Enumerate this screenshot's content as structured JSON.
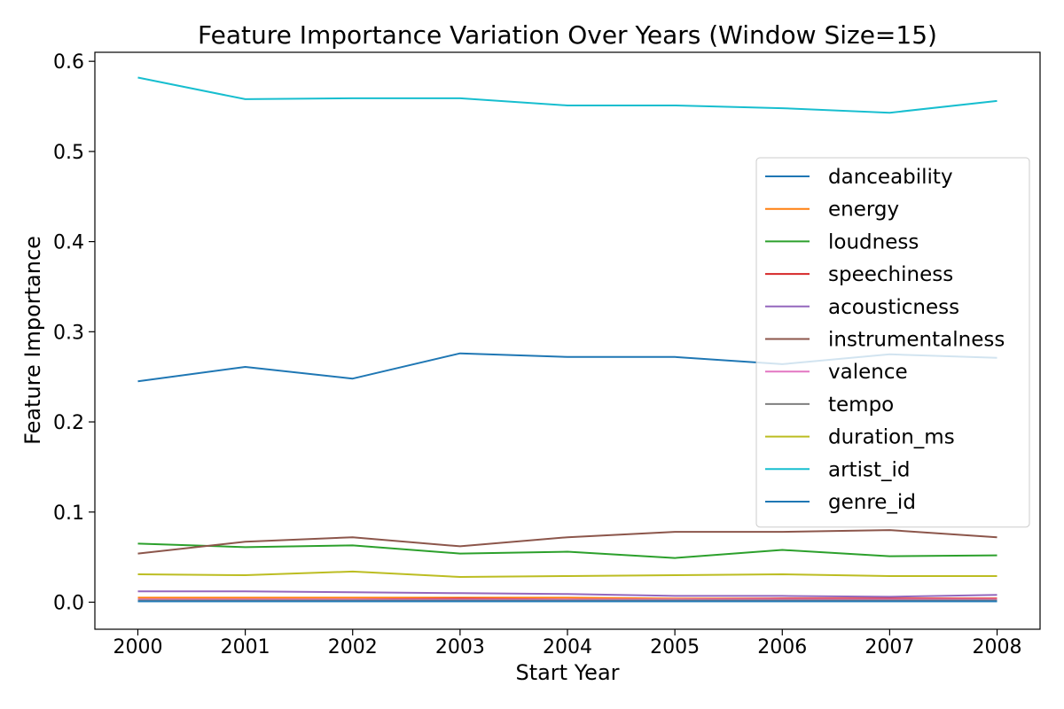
{
  "chart_data": {
    "type": "line",
    "title": "Feature Importance Variation Over Years (Window Size=15)",
    "xlabel": "Start Year",
    "ylabel": "Feature Importance",
    "x": [
      2000,
      2001,
      2002,
      2003,
      2004,
      2005,
      2006,
      2007,
      2008
    ],
    "xticks": [
      "2000",
      "2001",
      "2002",
      "2003",
      "2004",
      "2005",
      "2006",
      "2007",
      "2008"
    ],
    "yticks": [
      "0.0",
      "0.1",
      "0.2",
      "0.3",
      "0.4",
      "0.5",
      "0.6"
    ],
    "xlim": [
      1999.6,
      2008.4
    ],
    "ylim": [
      -0.03,
      0.61
    ],
    "grid": false,
    "legend": "center-right",
    "series": [
      {
        "name": "danceability",
        "color": "#1f77b4",
        "values": [
          0.245,
          0.261,
          0.248,
          0.276,
          0.272,
          0.272,
          0.264,
          0.275,
          0.271
        ]
      },
      {
        "name": "energy",
        "color": "#ff7f0e",
        "values": [
          0.005,
          0.005,
          0.005,
          0.005,
          0.005,
          0.004,
          0.004,
          0.004,
          0.004
        ]
      },
      {
        "name": "loudness",
        "color": "#2ca02c",
        "values": [
          0.065,
          0.061,
          0.063,
          0.054,
          0.056,
          0.049,
          0.058,
          0.051,
          0.052
        ]
      },
      {
        "name": "speechiness",
        "color": "#d62728",
        "values": [
          0.003,
          0.003,
          0.003,
          0.004,
          0.003,
          0.003,
          0.004,
          0.004,
          0.004
        ]
      },
      {
        "name": "acousticness",
        "color": "#9467bd",
        "values": [
          0.012,
          0.012,
          0.011,
          0.01,
          0.009,
          0.007,
          0.007,
          0.006,
          0.008
        ]
      },
      {
        "name": "instrumentalness",
        "color": "#8c564b",
        "values": [
          0.054,
          0.067,
          0.072,
          0.062,
          0.072,
          0.078,
          0.078,
          0.08,
          0.072
        ]
      },
      {
        "name": "valence",
        "color": "#e377c2",
        "values": [
          0.003,
          0.003,
          0.003,
          0.003,
          0.003,
          0.003,
          0.003,
          0.003,
          0.003
        ]
      },
      {
        "name": "tempo",
        "color": "#7f7f7f",
        "values": [
          0.002,
          0.002,
          0.002,
          0.002,
          0.002,
          0.002,
          0.002,
          0.002,
          0.002
        ]
      },
      {
        "name": "duration_ms",
        "color": "#bcbd22",
        "values": [
          0.031,
          0.03,
          0.034,
          0.028,
          0.029,
          0.03,
          0.031,
          0.029,
          0.029
        ]
      },
      {
        "name": "artist_id",
        "color": "#17becf",
        "values": [
          0.582,
          0.558,
          0.559,
          0.559,
          0.551,
          0.551,
          0.548,
          0.543,
          0.556
        ]
      },
      {
        "name": "genre_id",
        "color": "#1f77b4",
        "values": [
          0.001,
          0.001,
          0.001,
          0.001,
          0.001,
          0.001,
          0.001,
          0.001,
          0.001
        ]
      }
    ]
  }
}
